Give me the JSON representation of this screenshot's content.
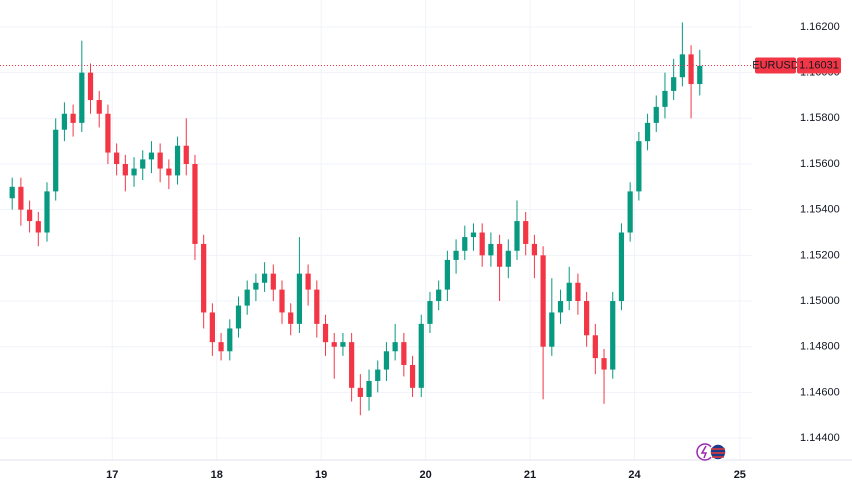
{
  "chart_data": {
    "type": "candlestick",
    "symbol": "EURUSD",
    "last_price": {
      "value": 1.16031,
      "label": "1.16031"
    },
    "up_color": "#089981",
    "down_color": "#f23645",
    "grid": true,
    "xlim": [
      -1.4,
      85
    ],
    "ylim": [
      1.14304,
      1.16318
    ],
    "xticks": [
      {
        "value": 11.5,
        "label": "17"
      },
      {
        "value": 23.5,
        "label": "18"
      },
      {
        "value": 35.5,
        "label": "19"
      },
      {
        "value": 47.5,
        "label": "20"
      },
      {
        "value": 59.5,
        "label": "21"
      },
      {
        "value": 71.5,
        "label": "24"
      },
      {
        "value": 83.6,
        "label": "25"
      }
    ],
    "yticks": [
      {
        "value": 1.144,
        "label": "1.14400"
      },
      {
        "value": 1.146,
        "label": "1.14600"
      },
      {
        "value": 1.148,
        "label": "1.14800"
      },
      {
        "value": 1.15,
        "label": "1.15000"
      },
      {
        "value": 1.152,
        "label": "1.15200"
      },
      {
        "value": 1.154,
        "label": "1.15400"
      },
      {
        "value": 1.156,
        "label": "1.15600"
      },
      {
        "value": 1.158,
        "label": "1.15800"
      },
      {
        "value": 1.16,
        "label": "1.16000"
      },
      {
        "value": 1.162,
        "label": "1.16200"
      }
    ],
    "open": [
      1.1545,
      1.155,
      1.154,
      1.1535,
      1.153,
      1.1548,
      1.1575,
      1.1582,
      1.1578,
      1.16,
      1.1588,
      1.1582,
      1.1565,
      1.156,
      1.1555,
      1.1558,
      1.1562,
      1.1565,
      1.1558,
      1.1555,
      1.1568,
      1.156,
      1.1525,
      1.1495,
      1.1482,
      1.1478,
      1.1488,
      1.1498,
      1.1505,
      1.1508,
      1.1512,
      1.1505,
      1.1495,
      1.149,
      1.1512,
      1.1505,
      1.149,
      1.1482,
      1.148,
      1.1482,
      1.1462,
      1.1458,
      1.1465,
      1.147,
      1.1478,
      1.1482,
      1.1472,
      1.1462,
      1.149,
      1.15,
      1.1505,
      1.1518,
      1.1522,
      1.1528,
      1.153,
      1.152,
      1.1525,
      1.1515,
      1.1522,
      1.1535,
      1.1525,
      1.152,
      1.148,
      1.1495,
      1.15,
      1.1508,
      1.15,
      1.1485,
      1.1475,
      1.147,
      1.15,
      1.153,
      1.1548,
      1.157,
      1.1578,
      1.1585,
      1.1592,
      1.1598,
      1.1608,
      1.1595
    ],
    "high": [
      1.1554,
      1.1554,
      1.1544,
      1.1539,
      1.1552,
      1.158,
      1.1587,
      1.1586,
      1.1614,
      1.1604,
      1.1592,
      1.1586,
      1.1569,
      1.1564,
      1.1563,
      1.1566,
      1.157,
      1.1569,
      1.1562,
      1.1572,
      1.158,
      1.1564,
      1.1529,
      1.1499,
      1.1486,
      1.1492,
      1.1502,
      1.1509,
      1.1512,
      1.1517,
      1.1516,
      1.1509,
      1.1499,
      1.1528,
      1.1516,
      1.1509,
      1.1494,
      1.1486,
      1.1486,
      1.1486,
      1.1468,
      1.147,
      1.1474,
      1.1482,
      1.149,
      1.1486,
      1.1476,
      1.1494,
      1.1504,
      1.1509,
      1.1522,
      1.1527,
      1.1533,
      1.1534,
      1.1534,
      1.153,
      1.1529,
      1.1527,
      1.1544,
      1.1539,
      1.1529,
      1.1524,
      1.151,
      1.1505,
      1.1515,
      1.1512,
      1.1504,
      1.149,
      1.1479,
      1.1504,
      1.1534,
      1.1552,
      1.1574,
      1.1582,
      1.159,
      1.16,
      1.1606,
      1.1622,
      1.1612,
      1.161
    ],
    "low": [
      1.154,
      1.1533,
      1.153,
      1.1524,
      1.1526,
      1.1544,
      1.157,
      1.1572,
      1.1574,
      1.1582,
      1.1576,
      1.156,
      1.1555,
      1.1548,
      1.155,
      1.1553,
      1.1556,
      1.1552,
      1.1549,
      1.1551,
      1.1555,
      1.1518,
      1.1488,
      1.1476,
      1.1474,
      1.1474,
      1.1484,
      1.1494,
      1.15,
      1.1504,
      1.15,
      1.149,
      1.1485,
      1.1486,
      1.1498,
      1.1484,
      1.1476,
      1.1466,
      1.1476,
      1.1456,
      1.145,
      1.1452,
      1.146,
      1.1465,
      1.1474,
      1.1467,
      1.1458,
      1.1458,
      1.1486,
      1.1496,
      1.15,
      1.1512,
      1.1518,
      1.1522,
      1.1515,
      1.1515,
      1.15,
      1.151,
      1.1518,
      1.152,
      1.151,
      1.1457,
      1.1476,
      1.149,
      1.1496,
      1.1494,
      1.148,
      1.1468,
      1.1455,
      1.1466,
      1.1496,
      1.1526,
      1.1544,
      1.1566,
      1.1574,
      1.158,
      1.1588,
      1.1594,
      1.158,
      1.159
    ],
    "close": [
      1.155,
      1.154,
      1.1535,
      1.153,
      1.1548,
      1.1575,
      1.1582,
      1.1578,
      1.16,
      1.1588,
      1.1582,
      1.1565,
      1.156,
      1.1555,
      1.1558,
      1.1562,
      1.1565,
      1.1558,
      1.1555,
      1.1568,
      1.156,
      1.1525,
      1.1495,
      1.1482,
      1.1478,
      1.1488,
      1.1498,
      1.1505,
      1.1508,
      1.1512,
      1.1505,
      1.1495,
      1.149,
      1.1512,
      1.1505,
      1.149,
      1.1482,
      1.148,
      1.1482,
      1.1462,
      1.1458,
      1.1465,
      1.147,
      1.1478,
      1.1482,
      1.1472,
      1.1462,
      1.149,
      1.15,
      1.1505,
      1.1518,
      1.1522,
      1.1528,
      1.153,
      1.152,
      1.1525,
      1.1515,
      1.1522,
      1.1535,
      1.1525,
      1.152,
      1.148,
      1.1495,
      1.15,
      1.1508,
      1.15,
      1.1485,
      1.1475,
      1.147,
      1.15,
      1.153,
      1.1548,
      1.157,
      1.1578,
      1.1585,
      1.1592,
      1.1598,
      1.1608,
      1.1595,
      1.1603
    ]
  }
}
